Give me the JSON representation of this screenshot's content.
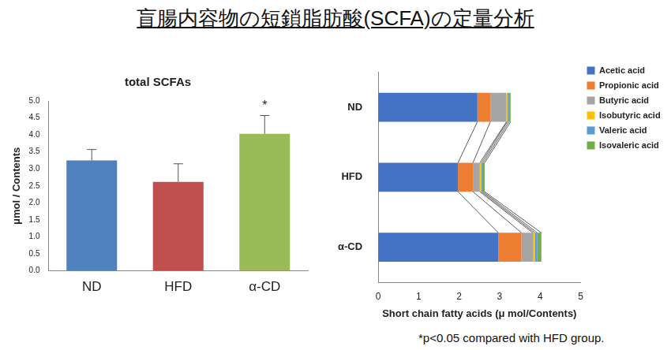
{
  "title": "盲腸内容物の短鎖脂肪酸(SCFA)の定量分析",
  "footnote": "*p<0.05 compared with HFD group.",
  "chart_data": [
    {
      "type": "bar",
      "title": "total SCFAs",
      "y_label": "μmol / Contents",
      "categories": [
        "ND",
        "HFD",
        "α-CD"
      ],
      "values": [
        3.25,
        2.62,
        4.03
      ],
      "errors": [
        0.32,
        0.53,
        0.54
      ],
      "colors": [
        "#4f81bd",
        "#c0504d",
        "#9bbb59"
      ],
      "ylim": [
        0,
        5
      ],
      "yticks": [
        {
          "value": 0,
          "label": "0.0"
        },
        0.5,
        {
          "value": 1,
          "label": "1.0"
        },
        1.5,
        {
          "value": 2,
          "label": "2.0"
        },
        2.5,
        {
          "value": 3,
          "label": "3.0"
        },
        3.5,
        {
          "value": 4,
          "label": "4.0"
        },
        4.5,
        {
          "value": 5,
          "label": "5.0"
        }
      ],
      "annotations": [
        {
          "category": "α-CD",
          "text": "*"
        }
      ],
      "grid": false
    },
    {
      "type": "bar",
      "orientation": "horizontal",
      "stacked": true,
      "x_label": "Short chain fatty acids (μ mol/Contents)",
      "categories": [
        "ND",
        "HFD",
        "α-CD"
      ],
      "series": [
        {
          "name": "Acetic acid",
          "color": "#4472c4",
          "values": [
            2.45,
            1.97,
            2.97
          ]
        },
        {
          "name": "Propionic acid",
          "color": "#ed7d31",
          "values": [
            0.32,
            0.37,
            0.57
          ]
        },
        {
          "name": "Butyric acid",
          "color": "#a5a5a5",
          "values": [
            0.4,
            0.17,
            0.28
          ]
        },
        {
          "name": "Isobutyric acid",
          "color": "#ffc000",
          "values": [
            0.02,
            0.04,
            0.05
          ]
        },
        {
          "name": "Valeric acid",
          "color": "#5b9bd5",
          "values": [
            0.04,
            0.04,
            0.06
          ]
        },
        {
          "name": "Isovaleric acid",
          "color": "#70ad47",
          "values": [
            0.04,
            0.04,
            0.1
          ]
        }
      ],
      "xlim": [
        0,
        5
      ],
      "xticks": [
        0,
        1,
        2,
        3,
        4,
        5
      ],
      "legend": "right",
      "grid": false
    }
  ]
}
